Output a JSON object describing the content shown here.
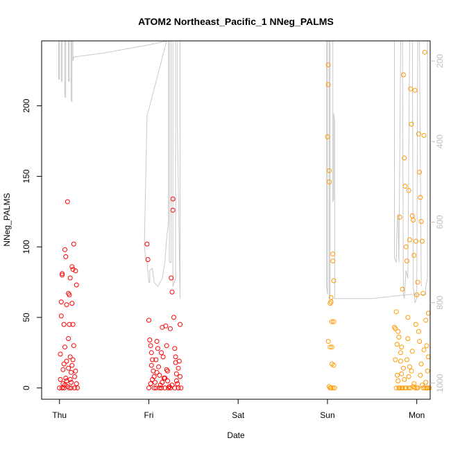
{
  "chart_data": {
    "type": "scatter",
    "title": "ATOM2 Northeast_Pacific_1 NNeg_PALMS",
    "xlabel": "Date",
    "ylabel": "NNeg_PALMS",
    "x_ticks": [
      "Thu",
      "Fri",
      "Sat",
      "Sun",
      "Mon"
    ],
    "y_ticks": [
      0,
      50,
      100,
      150,
      200
    ],
    "ylim": [
      -8,
      246
    ],
    "xlim_days": [
      -0.2,
      4.15
    ],
    "y2_ticks": [
      200,
      400,
      600,
      800,
      1000
    ],
    "y2lim": [
      1040,
      150
    ],
    "y2_axis_note": "pressure axis (hPa), reversed",
    "colors": {
      "early": "#ff0000",
      "late": "#ff9900",
      "trace": "#c8c8c8"
    },
    "grid": false,
    "legend": "none",
    "series": [
      {
        "points": [
          [
            0.0,
            0
          ],
          [
            0.01,
            6
          ],
          [
            0.01,
            24
          ],
          [
            0.02,
            51
          ],
          [
            0.02,
            61
          ],
          [
            0.03,
            80
          ],
          [
            0.03,
            81
          ],
          [
            0.04,
            13
          ],
          [
            0.04,
            3
          ],
          [
            0.05,
            0
          ],
          [
            0.05,
            17
          ],
          [
            0.06,
            98
          ],
          [
            0.06,
            29
          ],
          [
            0.07,
            7
          ],
          [
            0.07,
            93
          ],
          [
            0.08,
            59
          ],
          [
            0.08,
            19
          ],
          [
            0.09,
            1
          ],
          [
            0.09,
            132
          ],
          [
            0.1,
            14
          ],
          [
            0.1,
            67
          ],
          [
            0.11,
            66
          ],
          [
            0.11,
            45
          ],
          [
            0.12,
            78
          ],
          [
            0.12,
            22
          ],
          [
            0.13,
            4
          ],
          [
            0.13,
            0
          ],
          [
            0.14,
            60
          ],
          [
            0.14,
            86
          ],
          [
            0.15,
            84
          ],
          [
            0.15,
            45
          ],
          [
            0.16,
            102
          ],
          [
            0.16,
            30
          ],
          [
            0.17,
            8
          ],
          [
            0.17,
            0
          ],
          [
            0.18,
            83
          ],
          [
            0.18,
            12
          ],
          [
            0.19,
            3
          ],
          [
            0.19,
            73
          ],
          [
            0.2,
            0
          ],
          [
            0.03,
            0
          ],
          [
            0.06,
            2
          ],
          [
            0.08,
            5
          ],
          [
            0.11,
            0
          ],
          [
            0.13,
            11
          ],
          [
            0.15,
            20
          ],
          [
            0.05,
            45
          ],
          [
            0.1,
            35
          ],
          [
            0.14,
            16
          ],
          [
            0.12,
            6
          ],
          [
            0.98,
            102
          ],
          [
            0.99,
            91
          ],
          [
            1.0,
            48
          ],
          [
            1.01,
            34
          ],
          [
            1.02,
            30
          ],
          [
            1.03,
            25
          ],
          [
            1.04,
            20
          ],
          [
            1.05,
            12
          ],
          [
            1.06,
            8
          ],
          [
            1.07,
            4
          ],
          [
            1.08,
            0
          ],
          [
            1.09,
            33
          ],
          [
            1.1,
            28
          ],
          [
            1.11,
            15
          ],
          [
            1.12,
            9
          ],
          [
            1.13,
            2
          ],
          [
            1.14,
            0
          ],
          [
            1.15,
            43
          ],
          [
            1.16,
            22
          ],
          [
            1.17,
            7
          ],
          [
            1.18,
            0
          ],
          [
            1.19,
            44
          ],
          [
            1.2,
            13
          ],
          [
            1.21,
            5
          ],
          [
            1.22,
            0
          ],
          [
            1.23,
            1
          ],
          [
            1.24,
            42
          ],
          [
            1.25,
            78
          ],
          [
            1.26,
            68
          ],
          [
            1.27,
            134
          ],
          [
            1.27,
            126
          ],
          [
            1.28,
            50
          ],
          [
            1.29,
            28
          ],
          [
            1.3,
            18
          ],
          [
            1.31,
            10
          ],
          [
            1.32,
            3
          ],
          [
            1.33,
            0
          ],
          [
            1.34,
            19
          ],
          [
            1.35,
            45
          ],
          [
            1.36,
            0
          ],
          [
            1.0,
            0
          ],
          [
            1.02,
            3
          ],
          [
            1.04,
            6
          ],
          [
            1.06,
            0
          ],
          [
            1.09,
            11
          ],
          [
            1.12,
            0
          ],
          [
            1.15,
            4
          ],
          [
            1.18,
            7
          ],
          [
            1.21,
            12
          ],
          [
            1.24,
            0
          ],
          [
            1.26,
            2
          ],
          [
            1.29,
            0
          ],
          [
            1.31,
            5
          ],
          [
            1.33,
            14
          ],
          [
            1.35,
            8
          ],
          [
            1.03,
            16
          ],
          [
            1.08,
            20
          ],
          [
            1.14,
            25
          ],
          [
            1.2,
            30
          ],
          [
            1.3,
            22
          ]
        ]
      },
      {
        "points": [
          [
            3.0,
            178
          ],
          [
            3.01,
            229
          ],
          [
            3.01,
            215
          ],
          [
            3.02,
            154
          ],
          [
            3.02,
            146
          ],
          [
            3.03,
            0
          ],
          [
            3.03,
            60
          ],
          [
            3.04,
            61
          ],
          [
            3.04,
            64
          ],
          [
            3.05,
            47
          ],
          [
            3.05,
            17
          ],
          [
            3.06,
            95
          ],
          [
            3.06,
            90
          ],
          [
            3.07,
            76
          ],
          [
            3.07,
            47
          ],
          [
            3.08,
            0
          ],
          [
            3.01,
            33
          ],
          [
            3.03,
            29
          ],
          [
            3.05,
            29
          ],
          [
            3.07,
            16
          ],
          [
            3.02,
            1
          ],
          [
            3.04,
            0
          ],
          [
            3.06,
            0
          ],
          [
            3.75,
            43
          ],
          [
            3.76,
            42
          ],
          [
            3.77,
            54
          ],
          [
            3.78,
            31
          ],
          [
            3.79,
            40
          ],
          [
            3.8,
            36
          ],
          [
            3.81,
            121
          ],
          [
            3.82,
            19
          ],
          [
            3.83,
            29
          ],
          [
            3.84,
            70
          ],
          [
            3.85,
            222
          ],
          [
            3.86,
            163
          ],
          [
            3.87,
            143
          ],
          [
            3.88,
            100
          ],
          [
            3.89,
            90
          ],
          [
            3.9,
            50
          ],
          [
            3.91,
            140
          ],
          [
            3.92,
            105
          ],
          [
            3.93,
            212
          ],
          [
            3.94,
            187
          ],
          [
            3.95,
            122
          ],
          [
            3.96,
            119
          ],
          [
            3.97,
            94
          ],
          [
            3.98,
            211
          ],
          [
            3.99,
            104
          ],
          [
            4.0,
            66
          ],
          [
            4.01,
            75
          ],
          [
            4.02,
            180
          ],
          [
            4.03,
            153
          ],
          [
            4.04,
            135
          ],
          [
            4.05,
            118
          ],
          [
            4.06,
            104
          ],
          [
            4.07,
            67
          ],
          [
            4.08,
            179
          ],
          [
            4.09,
            238
          ],
          [
            4.1,
            4
          ],
          [
            4.11,
            30
          ],
          [
            4.12,
            12
          ],
          [
            4.13,
            53
          ],
          [
            4.14,
            0
          ],
          [
            3.77,
            0
          ],
          [
            3.79,
            5
          ],
          [
            3.81,
            0
          ],
          [
            3.83,
            10
          ],
          [
            3.85,
            14
          ],
          [
            3.87,
            0
          ],
          [
            3.89,
            20
          ],
          [
            3.91,
            8
          ],
          [
            3.93,
            0
          ],
          [
            3.95,
            26
          ],
          [
            3.97,
            3
          ],
          [
            3.99,
            45
          ],
          [
            4.01,
            0
          ],
          [
            4.03,
            33
          ],
          [
            4.05,
            17
          ],
          [
            4.07,
            0
          ],
          [
            4.09,
            0
          ],
          [
            4.11,
            0
          ],
          [
            4.13,
            22
          ],
          [
            3.78,
            9
          ],
          [
            3.82,
            25
          ],
          [
            3.86,
            6
          ],
          [
            3.9,
            35
          ],
          [
            3.94,
            12
          ],
          [
            3.98,
            0
          ],
          [
            4.02,
            40
          ],
          [
            4.06,
            2
          ],
          [
            4.1,
            48
          ],
          [
            3.8,
            0
          ],
          [
            3.88,
            0
          ],
          [
            3.96,
            1
          ],
          [
            4.04,
            9
          ],
          [
            4.12,
            0
          ],
          [
            3.84,
            0
          ],
          [
            3.92,
            15
          ],
          [
            4.0,
            0
          ],
          [
            4.08,
            27
          ],
          [
            3.76,
            20
          ],
          [
            3.83,
            0
          ],
          [
            3.91,
            0
          ]
        ]
      }
    ],
    "pressure_trace": [
      [
        -0.01,
        150
      ],
      [
        -0.01,
        245
      ],
      [
        0.0,
        245
      ],
      [
        0.0,
        150
      ],
      [
        0.02,
        150
      ],
      [
        0.02,
        250
      ],
      [
        0.03,
        250
      ],
      [
        0.03,
        150
      ],
      [
        0.06,
        150
      ],
      [
        0.06,
        290
      ],
      [
        0.07,
        290
      ],
      [
        0.07,
        150
      ],
      [
        0.1,
        150
      ],
      [
        0.1,
        250
      ],
      [
        0.11,
        250
      ],
      [
        0.11,
        150
      ],
      [
        0.13,
        150
      ],
      [
        0.13,
        300
      ],
      [
        0.14,
        300
      ],
      [
        0.14,
        150
      ],
      [
        0.15,
        150
      ],
      [
        0.15,
        200
      ],
      [
        0.16,
        190
      ],
      [
        0.5,
        180
      ],
      [
        1.0,
        160
      ],
      [
        1.2,
        150
      ],
      [
        1.2,
        150
      ],
      [
        1.0,
        320
      ],
      [
        0.98,
        335
      ],
      [
        0.95,
        660
      ],
      [
        0.96,
        680
      ],
      [
        0.98,
        700
      ],
      [
        1.0,
        750
      ],
      [
        1.01,
        750
      ],
      [
        1.01,
        720
      ],
      [
        1.04,
        715
      ],
      [
        1.06,
        750
      ],
      [
        1.1,
        760
      ],
      [
        1.15,
        740
      ],
      [
        1.18,
        700
      ],
      [
        1.2,
        640
      ],
      [
        1.22,
        600
      ],
      [
        1.22,
        150
      ],
      [
        1.23,
        150
      ],
      [
        1.23,
        700
      ],
      [
        1.25,
        700
      ],
      [
        1.25,
        150
      ],
      [
        1.27,
        150
      ],
      [
        1.27,
        760
      ],
      [
        1.3,
        740
      ],
      [
        1.3,
        150
      ],
      [
        1.32,
        150
      ],
      [
        1.32,
        360
      ],
      [
        1.35,
        790
      ],
      [
        1.35,
        150
      ],
      [
        2.99,
        150
      ],
      [
        2.99,
        760
      ],
      [
        3.0,
        780
      ],
      [
        3.0,
        150
      ],
      [
        3.02,
        150
      ],
      [
        3.02,
        780
      ],
      [
        3.03,
        790
      ],
      [
        3.03,
        150
      ],
      [
        3.06,
        150
      ],
      [
        3.06,
        550
      ],
      [
        3.07,
        540
      ],
      [
        3.07,
        330
      ],
      [
        3.08,
        350
      ],
      [
        3.08,
        790
      ],
      [
        3.5,
        790
      ],
      [
        3.9,
        780
      ],
      [
        4.1,
        780
      ],
      [
        4.1,
        760
      ],
      [
        4.12,
        740
      ],
      [
        4.12,
        150
      ],
      [
        3.75,
        150
      ],
      [
        3.75,
        690
      ],
      [
        3.77,
        700
      ],
      [
        3.78,
        600
      ],
      [
        3.79,
        580
      ],
      [
        3.8,
        700
      ],
      [
        3.82,
        150
      ],
      [
        3.84,
        150
      ],
      [
        3.85,
        780
      ],
      [
        3.86,
        790
      ],
      [
        3.88,
        720
      ],
      [
        3.9,
        740
      ],
      [
        3.92,
        150
      ],
      [
        3.95,
        150
      ],
      [
        3.96,
        760
      ],
      [
        3.98,
        800
      ],
      [
        4.0,
        790
      ],
      [
        4.01,
        150
      ],
      [
        4.03,
        150
      ],
      [
        4.05,
        760
      ]
    ]
  }
}
